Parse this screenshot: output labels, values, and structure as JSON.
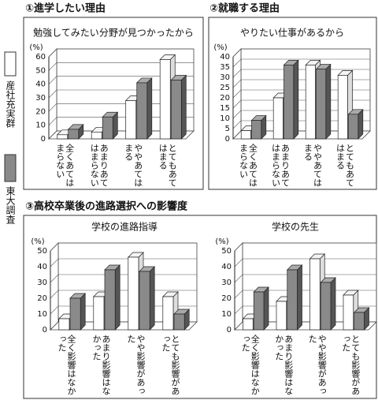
{
  "section_titles": [
    "①進学したい理由",
    "②就職する理由",
    "③高校卒業後の進路選択への影響度"
  ],
  "chart_data": [
    {
      "type": "bar",
      "title": "勉強してみたい分野が見つかったから",
      "ylabel": "(%)",
      "categories": [
        "全くあてはまらない",
        "あまりあてはまらない",
        "ややあてはまる",
        "とてもあてはまる"
      ],
      "series": [
        {
          "name": "産社充実群",
          "color": "#ffffff",
          "values": [
            3,
            5,
            28,
            58
          ]
        },
        {
          "name": "東大調査",
          "color": "#8a8a8a",
          "values": [
            7,
            16,
            41,
            43
          ]
        }
      ],
      "ylim": [
        0,
        60
      ],
      "yticks": [
        0,
        10,
        20,
        30,
        40,
        50,
        60
      ],
      "grid": true
    },
    {
      "type": "bar",
      "title": "やりたい仕事があるから",
      "ylabel": "(%)",
      "categories": [
        "全くあてはまらない",
        "あまりあてはまらない",
        "ややあてはまる",
        "とてもあてはまる"
      ],
      "series": [
        {
          "name": "産社充実群",
          "color": "#ffffff",
          "values": [
            4,
            20,
            36,
            31
          ]
        },
        {
          "name": "東大調査",
          "color": "#8a8a8a",
          "values": [
            9,
            36,
            34,
            12
          ]
        }
      ],
      "ylim": [
        0,
        40
      ],
      "yticks": [
        0,
        5,
        10,
        15,
        20,
        25,
        30,
        35,
        40
      ],
      "grid": true
    },
    {
      "type": "bar",
      "title": "学校の進路指導",
      "ylabel": "(%)",
      "categories": [
        "全く影響はなかった",
        "あまり影響はなかった",
        "やや影響があった",
        "とても影響があった"
      ],
      "series": [
        {
          "name": "産社充実群",
          "color": "#ffffff",
          "values": [
            7,
            21,
            46,
            21
          ]
        },
        {
          "name": "東大調査",
          "color": "#8a8a8a",
          "values": [
            20,
            38,
            37,
            10
          ]
        }
      ],
      "ylim": [
        0,
        50
      ],
      "yticks": [
        0,
        10,
        20,
        30,
        40,
        50
      ],
      "grid": true
    },
    {
      "type": "bar",
      "title": "学校の先生",
      "ylabel": "(%)",
      "categories": [
        "全く影響はなかった",
        "あまり影響はなかった",
        "やや影響があった",
        "とても影響があった"
      ],
      "series": [
        {
          "name": "産社充実群",
          "color": "#ffffff",
          "values": [
            7,
            18,
            45,
            22
          ]
        },
        {
          "name": "東大調査",
          "color": "#8a8a8a",
          "values": [
            24,
            38,
            30,
            11
          ]
        }
      ],
      "ylim": [
        0,
        50
      ],
      "yticks": [
        0,
        10,
        20,
        30,
        40,
        50
      ],
      "grid": true
    }
  ]
}
